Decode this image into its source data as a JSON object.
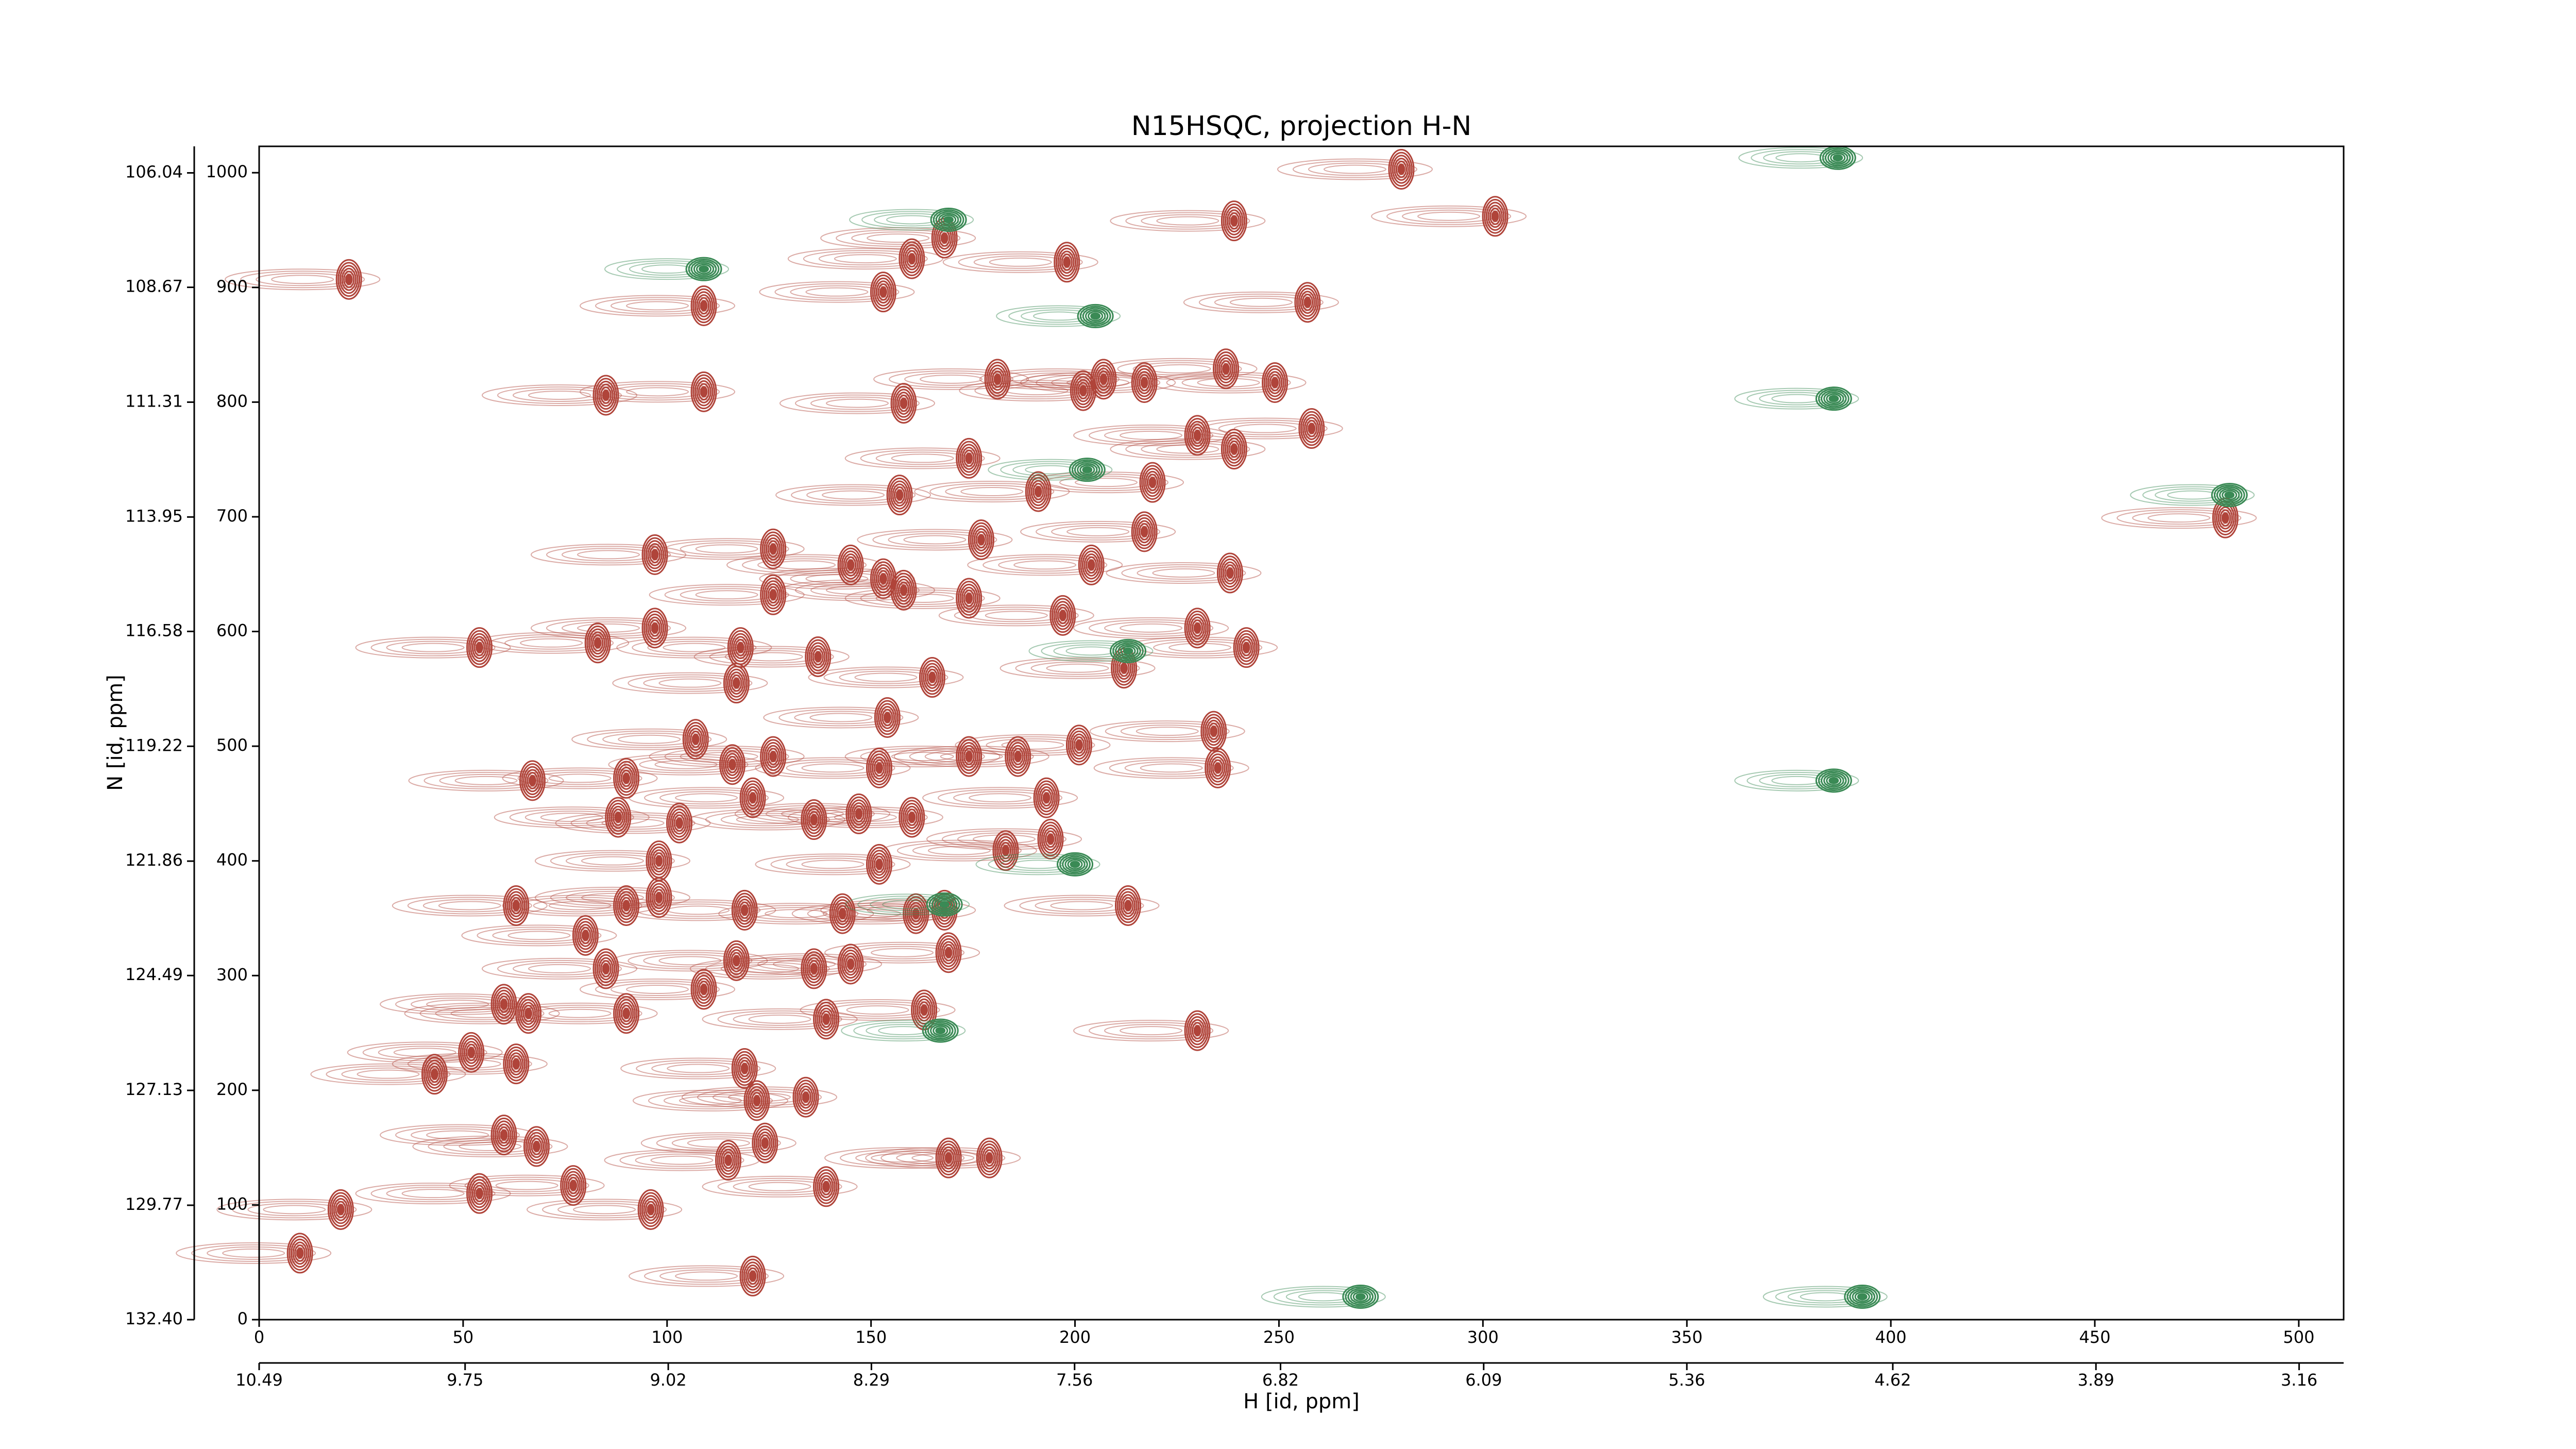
{
  "chart_data": {
    "type": "contour",
    "title": "N15HSQC, projection H-N",
    "xlabel": "H [id, ppm]",
    "ylabel": "N [id, ppm]",
    "xlim": [
      0,
      511
    ],
    "ylim": [
      0,
      1023
    ],
    "xticks": [
      0,
      50,
      100,
      150,
      200,
      250,
      300,
      350,
      400,
      450,
      500
    ],
    "yticks": [
      0,
      100,
      200,
      300,
      400,
      500,
      600,
      700,
      800,
      900,
      1000
    ],
    "x2lim": [
      10.49,
      3.0
    ],
    "x2ticks": [
      10.49,
      9.75,
      9.02,
      8.29,
      7.56,
      6.82,
      6.09,
      5.36,
      4.62,
      3.89,
      3.16
    ],
    "y2lim": [
      132.4,
      105.43
    ],
    "y2ticks": [
      106.04,
      108.67,
      111.31,
      113.95,
      116.58,
      119.22,
      121.86,
      124.49,
      127.13,
      129.77,
      {
        "value": 132.4,
        "label": "132.40"
      }
    ],
    "series": [
      {
        "color": "#b0443a",
        "x": [
          22,
          109,
          153,
          160,
          168,
          198,
          239,
          280,
          303,
          257,
          85,
          109,
          158,
          181,
          202,
          207,
          217,
          237,
          249,
          230,
          239,
          258,
          174,
          191,
          219,
          217,
          177,
          157,
          204,
          97,
          126,
          145,
          153,
          158,
          126,
          83,
          97,
          54,
          118,
          137,
          117,
          165,
          212,
          230,
          242,
          238,
          197,
          174,
          154,
          234,
          235,
          201,
          186,
          174,
          107,
          116,
          126,
          67,
          90,
          88,
          103,
          98,
          121,
          136,
          152,
          147,
          152,
          160,
          183,
          193,
          194,
          63,
          98,
          90,
          119,
          143,
          161,
          168,
          213,
          80,
          85,
          169,
          117,
          136,
          145,
          109,
          60,
          66,
          90,
          139,
          163,
          230,
          52,
          43,
          63,
          119,
          122,
          134,
          60,
          68,
          115,
          124,
          169,
          179,
          54,
          77,
          96,
          139,
          20,
          10,
          121,
          482
        ],
        "y": [
          907,
          884,
          896,
          925,
          943,
          922,
          958,
          1003,
          962,
          887,
          806,
          809,
          799,
          820,
          810,
          820,
          817,
          829,
          817,
          771,
          759,
          777,
          751,
          722,
          730,
          687,
          680,
          719,
          658,
          667,
          672,
          658,
          646,
          636,
          632,
          590,
          603,
          586,
          586,
          578,
          555,
          560,
          568,
          603,
          586,
          651,
          614,
          629,
          525,
          513,
          481,
          501,
          491,
          491,
          506,
          484,
          491,
          470,
          472,
          438,
          433,
          400,
          455,
          436,
          481,
          441,
          397,
          438,
          409,
          455,
          419,
          361,
          368,
          361,
          357,
          354,
          354,
          357,
          361,
          335,
          306,
          320,
          313,
          306,
          310,
          288,
          275,
          267,
          267,
          262,
          270,
          252,
          233,
          214,
          223,
          219,
          191,
          194,
          161,
          151,
          139,
          154,
          141,
          141,
          110,
          117,
          96,
          116,
          96,
          58,
          38,
          699
        ]
      },
      {
        "color": "#3a8a55",
        "x": [
          169,
          205,
          109,
          203,
          213,
          168,
          200,
          167,
          483,
          386,
          386,
          393,
          270,
          387
        ],
        "y": [
          959,
          875,
          916,
          741,
          583,
          362,
          397,
          252,
          719,
          803,
          470,
          20,
          20,
          1013
        ]
      }
    ]
  }
}
